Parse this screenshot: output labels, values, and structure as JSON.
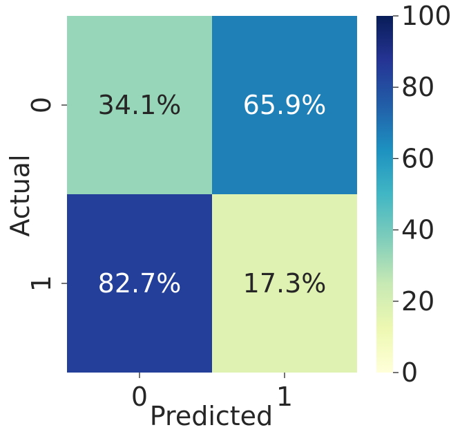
{
  "chart_data": {
    "type": "heatmap",
    "title": "",
    "xlabel": "Predicted",
    "ylabel": "Actual",
    "x_categories": [
      "0",
      "1"
    ],
    "y_categories": [
      "0",
      "1"
    ],
    "values": [
      [
        34.1,
        65.9
      ],
      [
        82.7,
        17.3
      ]
    ],
    "cell_labels": [
      [
        "34.1%",
        "65.9%"
      ],
      [
        "82.7%",
        "17.3%"
      ]
    ],
    "colorbar": {
      "range": [
        0,
        100
      ],
      "ticks": [
        0,
        20,
        40,
        60,
        80,
        100
      ],
      "colormap": "YlGnBu"
    },
    "colors": {
      "cells": [
        [
          "#97d6b9",
          "#1f80b8"
        ],
        [
          "#243f99",
          "#dff2b2"
        ]
      ],
      "dark_text": "#262626",
      "light_text": "#ffffff"
    }
  }
}
